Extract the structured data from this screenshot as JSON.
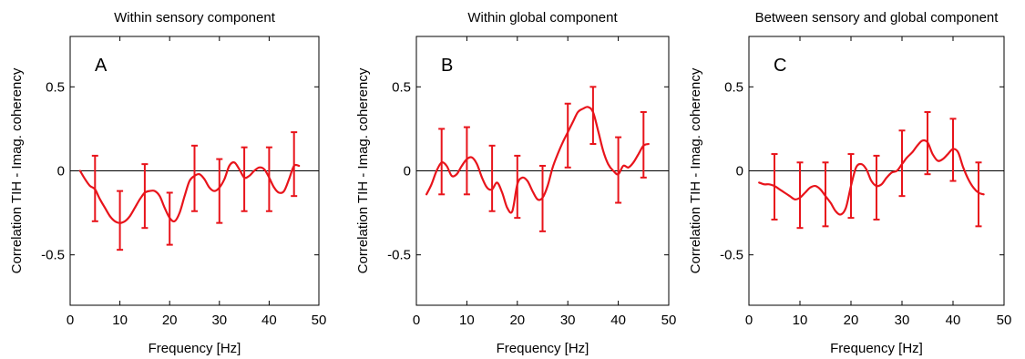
{
  "colors": {
    "series": "#e8141b",
    "axes": "#000000",
    "background": "#ffffff"
  },
  "chart_data": [
    {
      "type": "line",
      "title": "Within sensory component",
      "panel_label": "A",
      "xlabel": "Frequency [Hz]",
      "ylabel": "Correlation TIH - Imag. coherency",
      "xlim": [
        0,
        50
      ],
      "ylim": [
        -0.8,
        0.8
      ],
      "xticks": [
        0,
        10,
        20,
        30,
        40,
        50
      ],
      "yticks": [
        -0.5,
        0,
        0.5
      ],
      "ytick_labels": [
        "-0.5",
        "0",
        "0.5"
      ],
      "zero_line": true,
      "grid": false,
      "line": {
        "x": [
          2,
          3,
          4,
          5,
          6,
          7,
          8,
          9,
          10,
          11,
          12,
          13,
          14,
          15,
          16,
          17,
          18,
          19,
          20,
          21,
          22,
          23,
          24,
          25,
          26,
          27,
          28,
          29,
          30,
          31,
          32,
          33,
          34,
          35,
          36,
          37,
          38,
          39,
          40,
          41,
          42,
          43,
          44,
          45,
          46
        ],
        "y": [
          0.0,
          -0.05,
          -0.09,
          -0.11,
          -0.17,
          -0.22,
          -0.27,
          -0.3,
          -0.31,
          -0.3,
          -0.27,
          -0.22,
          -0.17,
          -0.13,
          -0.12,
          -0.12,
          -0.15,
          -0.22,
          -0.28,
          -0.3,
          -0.25,
          -0.15,
          -0.06,
          -0.03,
          -0.02,
          -0.05,
          -0.1,
          -0.12,
          -0.1,
          -0.05,
          0.03,
          0.05,
          0.01,
          -0.04,
          -0.03,
          0.0,
          0.02,
          0.01,
          -0.04,
          -0.1,
          -0.13,
          -0.12,
          -0.05,
          0.03,
          0.03
        ]
      },
      "error_bars": [
        {
          "x": 5,
          "low": -0.3,
          "high": 0.09
        },
        {
          "x": 10,
          "low": -0.47,
          "high": -0.12
        },
        {
          "x": 15,
          "low": -0.34,
          "high": 0.04
        },
        {
          "x": 20,
          "low": -0.44,
          "high": -0.13
        },
        {
          "x": 25,
          "low": -0.24,
          "high": 0.15
        },
        {
          "x": 30,
          "low": -0.31,
          "high": 0.07
        },
        {
          "x": 35,
          "low": -0.24,
          "high": 0.14
        },
        {
          "x": 40,
          "low": -0.24,
          "high": 0.14
        },
        {
          "x": 45,
          "low": -0.15,
          "high": 0.23
        }
      ]
    },
    {
      "type": "line",
      "title": "Within global component",
      "panel_label": "B",
      "xlabel": "Frequency [Hz]",
      "ylabel": "Correlation TIH - Imag. coherency",
      "xlim": [
        0,
        50
      ],
      "ylim": [
        -0.8,
        0.8
      ],
      "xticks": [
        0,
        10,
        20,
        30,
        40,
        50
      ],
      "yticks": [
        -0.5,
        0,
        0.5
      ],
      "ytick_labels": [
        "-0.5",
        "0",
        "0.5"
      ],
      "zero_line": true,
      "grid": false,
      "line": {
        "x": [
          2,
          3,
          4,
          5,
          6,
          7,
          8,
          9,
          10,
          11,
          12,
          13,
          14,
          15,
          16,
          17,
          18,
          19,
          20,
          21,
          22,
          23,
          24,
          25,
          26,
          27,
          28,
          29,
          30,
          31,
          32,
          33,
          34,
          35,
          36,
          37,
          38,
          39,
          40,
          41,
          42,
          43,
          44,
          45,
          46
        ],
        "y": [
          -0.14,
          -0.08,
          0.0,
          0.05,
          0.03,
          -0.03,
          -0.02,
          0.03,
          0.07,
          0.08,
          0.04,
          -0.04,
          -0.1,
          -0.11,
          -0.07,
          -0.13,
          -0.22,
          -0.24,
          -0.08,
          -0.04,
          -0.06,
          -0.12,
          -0.17,
          -0.16,
          -0.09,
          0.02,
          0.1,
          0.17,
          0.23,
          0.29,
          0.35,
          0.37,
          0.38,
          0.35,
          0.24,
          0.12,
          0.04,
          0.0,
          -0.02,
          0.03,
          0.02,
          0.05,
          0.1,
          0.15,
          0.16
        ]
      },
      "error_bars": [
        {
          "x": 5,
          "low": -0.14,
          "high": 0.25
        },
        {
          "x": 10,
          "low": -0.14,
          "high": 0.26
        },
        {
          "x": 15,
          "low": -0.24,
          "high": 0.15
        },
        {
          "x": 20,
          "low": -0.28,
          "high": 0.09
        },
        {
          "x": 25,
          "low": -0.36,
          "high": 0.03
        },
        {
          "x": 30,
          "low": 0.02,
          "high": 0.4
        },
        {
          "x": 35,
          "low": 0.16,
          "high": 0.5
        },
        {
          "x": 40,
          "low": -0.19,
          "high": 0.2
        },
        {
          "x": 45,
          "low": -0.04,
          "high": 0.35
        }
      ]
    },
    {
      "type": "line",
      "title": "Between sensory and global component",
      "panel_label": "C",
      "xlabel": "Frequency [Hz]",
      "ylabel": "Correlation TIH - Imag. coherency",
      "xlim": [
        0,
        50
      ],
      "ylim": [
        -0.8,
        0.8
      ],
      "xticks": [
        0,
        10,
        20,
        30,
        40,
        50
      ],
      "yticks": [
        -0.5,
        0,
        0.5
      ],
      "ytick_labels": [
        "-0.5",
        "0",
        "0.5"
      ],
      "zero_line": true,
      "grid": false,
      "line": {
        "x": [
          2,
          3,
          4,
          5,
          6,
          7,
          8,
          9,
          10,
          11,
          12,
          13,
          14,
          15,
          16,
          17,
          18,
          19,
          20,
          21,
          22,
          23,
          24,
          25,
          26,
          27,
          28,
          29,
          30,
          31,
          32,
          33,
          34,
          35,
          36,
          37,
          38,
          39,
          40,
          41,
          42,
          43,
          44,
          45,
          46
        ],
        "y": [
          -0.07,
          -0.08,
          -0.08,
          -0.09,
          -0.11,
          -0.13,
          -0.15,
          -0.17,
          -0.16,
          -0.13,
          -0.1,
          -0.09,
          -0.11,
          -0.15,
          -0.19,
          -0.24,
          -0.26,
          -0.22,
          -0.09,
          0.02,
          0.04,
          0.01,
          -0.06,
          -0.09,
          -0.08,
          -0.04,
          -0.01,
          0.0,
          0.04,
          0.08,
          0.11,
          0.15,
          0.18,
          0.17,
          0.1,
          0.06,
          0.07,
          0.1,
          0.13,
          0.11,
          0.02,
          -0.05,
          -0.1,
          -0.13,
          -0.14
        ]
      },
      "error_bars": [
        {
          "x": 5,
          "low": -0.29,
          "high": 0.1
        },
        {
          "x": 10,
          "low": -0.34,
          "high": 0.05
        },
        {
          "x": 15,
          "low": -0.33,
          "high": 0.05
        },
        {
          "x": 20,
          "low": -0.28,
          "high": 0.1
        },
        {
          "x": 25,
          "low": -0.29,
          "high": 0.09
        },
        {
          "x": 30,
          "low": -0.15,
          "high": 0.24
        },
        {
          "x": 35,
          "low": -0.02,
          "high": 0.35
        },
        {
          "x": 40,
          "low": -0.06,
          "high": 0.31
        },
        {
          "x": 45,
          "low": -0.33,
          "high": 0.05
        }
      ]
    }
  ]
}
